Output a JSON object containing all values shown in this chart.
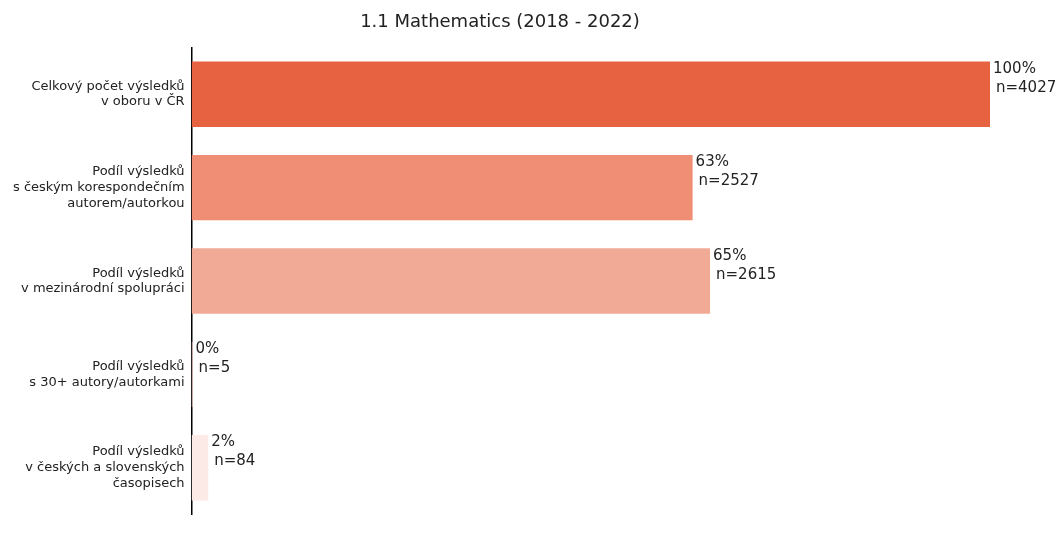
{
  "chart_data": {
    "type": "bar",
    "orientation": "horizontal",
    "title": "1.1 Mathematics (2018 - 2022)",
    "categories": [
      "Celkový počet výsledků\nv oboru v ČR",
      "Podíl výsledků\ns českým korespondečním\nautorem/autorkou",
      "Podíl výsledků\nv mezinárodní spolupráci",
      "Podíl výsledků\ns 30+ autory/autorkami",
      "Podíl výsledků\nv českých a slovenských\nčasopisech"
    ],
    "values": [
      4027,
      2527,
      2615,
      5,
      84
    ],
    "colors": [
      "#e76240",
      "#ef8e75",
      "#f1aa96",
      "#f5c9bb",
      "#fbeae5"
    ],
    "value_labels": [
      "100%\nn=4027",
      "63%\nn=2527",
      "65%\nn=2615",
      "0%\nn=5",
      "2%\nn=84"
    ],
    "grid": false,
    "legend": false,
    "tick_labels": "y"
  }
}
